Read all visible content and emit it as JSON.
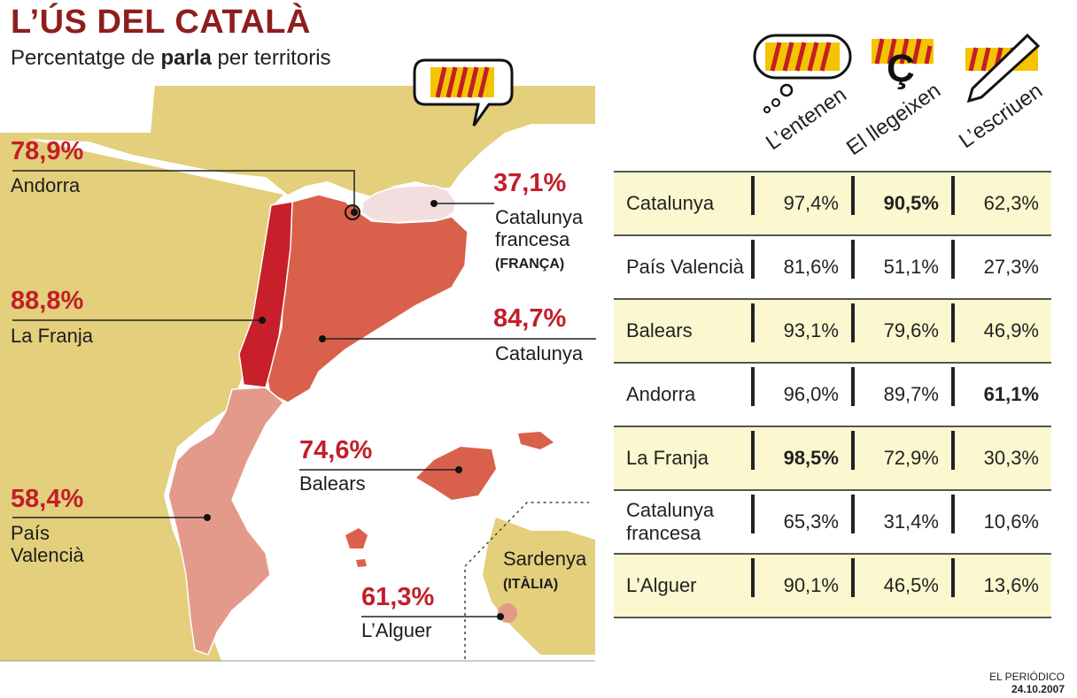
{
  "title": "L’ÚS DEL CATALÀ",
  "subtitle_pre": "Percentatge de ",
  "subtitle_bold": "parla",
  "subtitle_post": " per territoris",
  "map_labels": {
    "andorra": {
      "pct": "78,9%",
      "name": "Andorra"
    },
    "catalunya_francesa": {
      "pct": "37,1%",
      "name1": "Catalunya",
      "name2": "francesa",
      "country": "(FRANÇA)"
    },
    "la_franja": {
      "pct": "88,8%",
      "name": "La Franja"
    },
    "catalunya": {
      "pct": "84,7%",
      "name": "Catalunya"
    },
    "balears": {
      "pct": "74,6%",
      "name": "Balears"
    },
    "pais_valencia": {
      "pct": "58,4%",
      "name1": "País",
      "name2": "Valencià"
    },
    "sardenya": {
      "name": "Sardenya",
      "country": "(ITÀLIA)"
    },
    "alguer": {
      "pct": "61,3%",
      "name": "L’Alguer"
    }
  },
  "icons": [
    "speech-bubble-icon",
    "senyera-c-trencada-icon",
    "pencil-icon"
  ],
  "colors": {
    "title": "#8e1e1e",
    "pct": "#c21e2a",
    "land": "#e3cf7c",
    "row_highlight": "#fbf8cf"
  },
  "chart_data": {
    "type": "table",
    "title": "L’ÚS DEL CATALÀ",
    "subtitle": "Percentatge de parla per territoris",
    "columns": [
      "L’entenen",
      "El llegeixen",
      "L’escriuen"
    ],
    "rows": [
      {
        "territory": "Catalunya",
        "parla": "84,7%",
        "values": [
          "97,4%",
          "90,5%",
          "62,3%"
        ],
        "bold": [
          false,
          true,
          false
        ],
        "highlight": true
      },
      {
        "territory": "País Valencià",
        "parla": "58,4%",
        "values": [
          "81,6%",
          "51,1%",
          "27,3%"
        ],
        "bold": [
          false,
          false,
          false
        ],
        "highlight": false
      },
      {
        "territory": "Balears",
        "parla": "74,6%",
        "values": [
          "93,1%",
          "79,6%",
          "46,9%"
        ],
        "bold": [
          false,
          false,
          false
        ],
        "highlight": true
      },
      {
        "territory": "Andorra",
        "parla": "78,9%",
        "values": [
          "96,0%",
          "89,7%",
          "61,1%"
        ],
        "bold": [
          false,
          false,
          true
        ],
        "highlight": false
      },
      {
        "territory": "La Franja",
        "parla": "88,8%",
        "values": [
          "98,5%",
          "72,9%",
          "30,3%"
        ],
        "bold": [
          true,
          false,
          false
        ],
        "highlight": true
      },
      {
        "territory": "Catalunya francesa",
        "parla": "37,1%",
        "values": [
          "65,3%",
          "31,4%",
          "10,6%"
        ],
        "bold": [
          false,
          false,
          false
        ],
        "highlight": false
      },
      {
        "territory": "L’Alguer",
        "parla": "61,3%",
        "values": [
          "90,1%",
          "46,5%",
          "13,6%"
        ],
        "bold": [
          false,
          false,
          false
        ],
        "highlight": true
      }
    ]
  },
  "footer": {
    "source": "EL PERIÓDICO",
    "date": "24.10.2007"
  }
}
